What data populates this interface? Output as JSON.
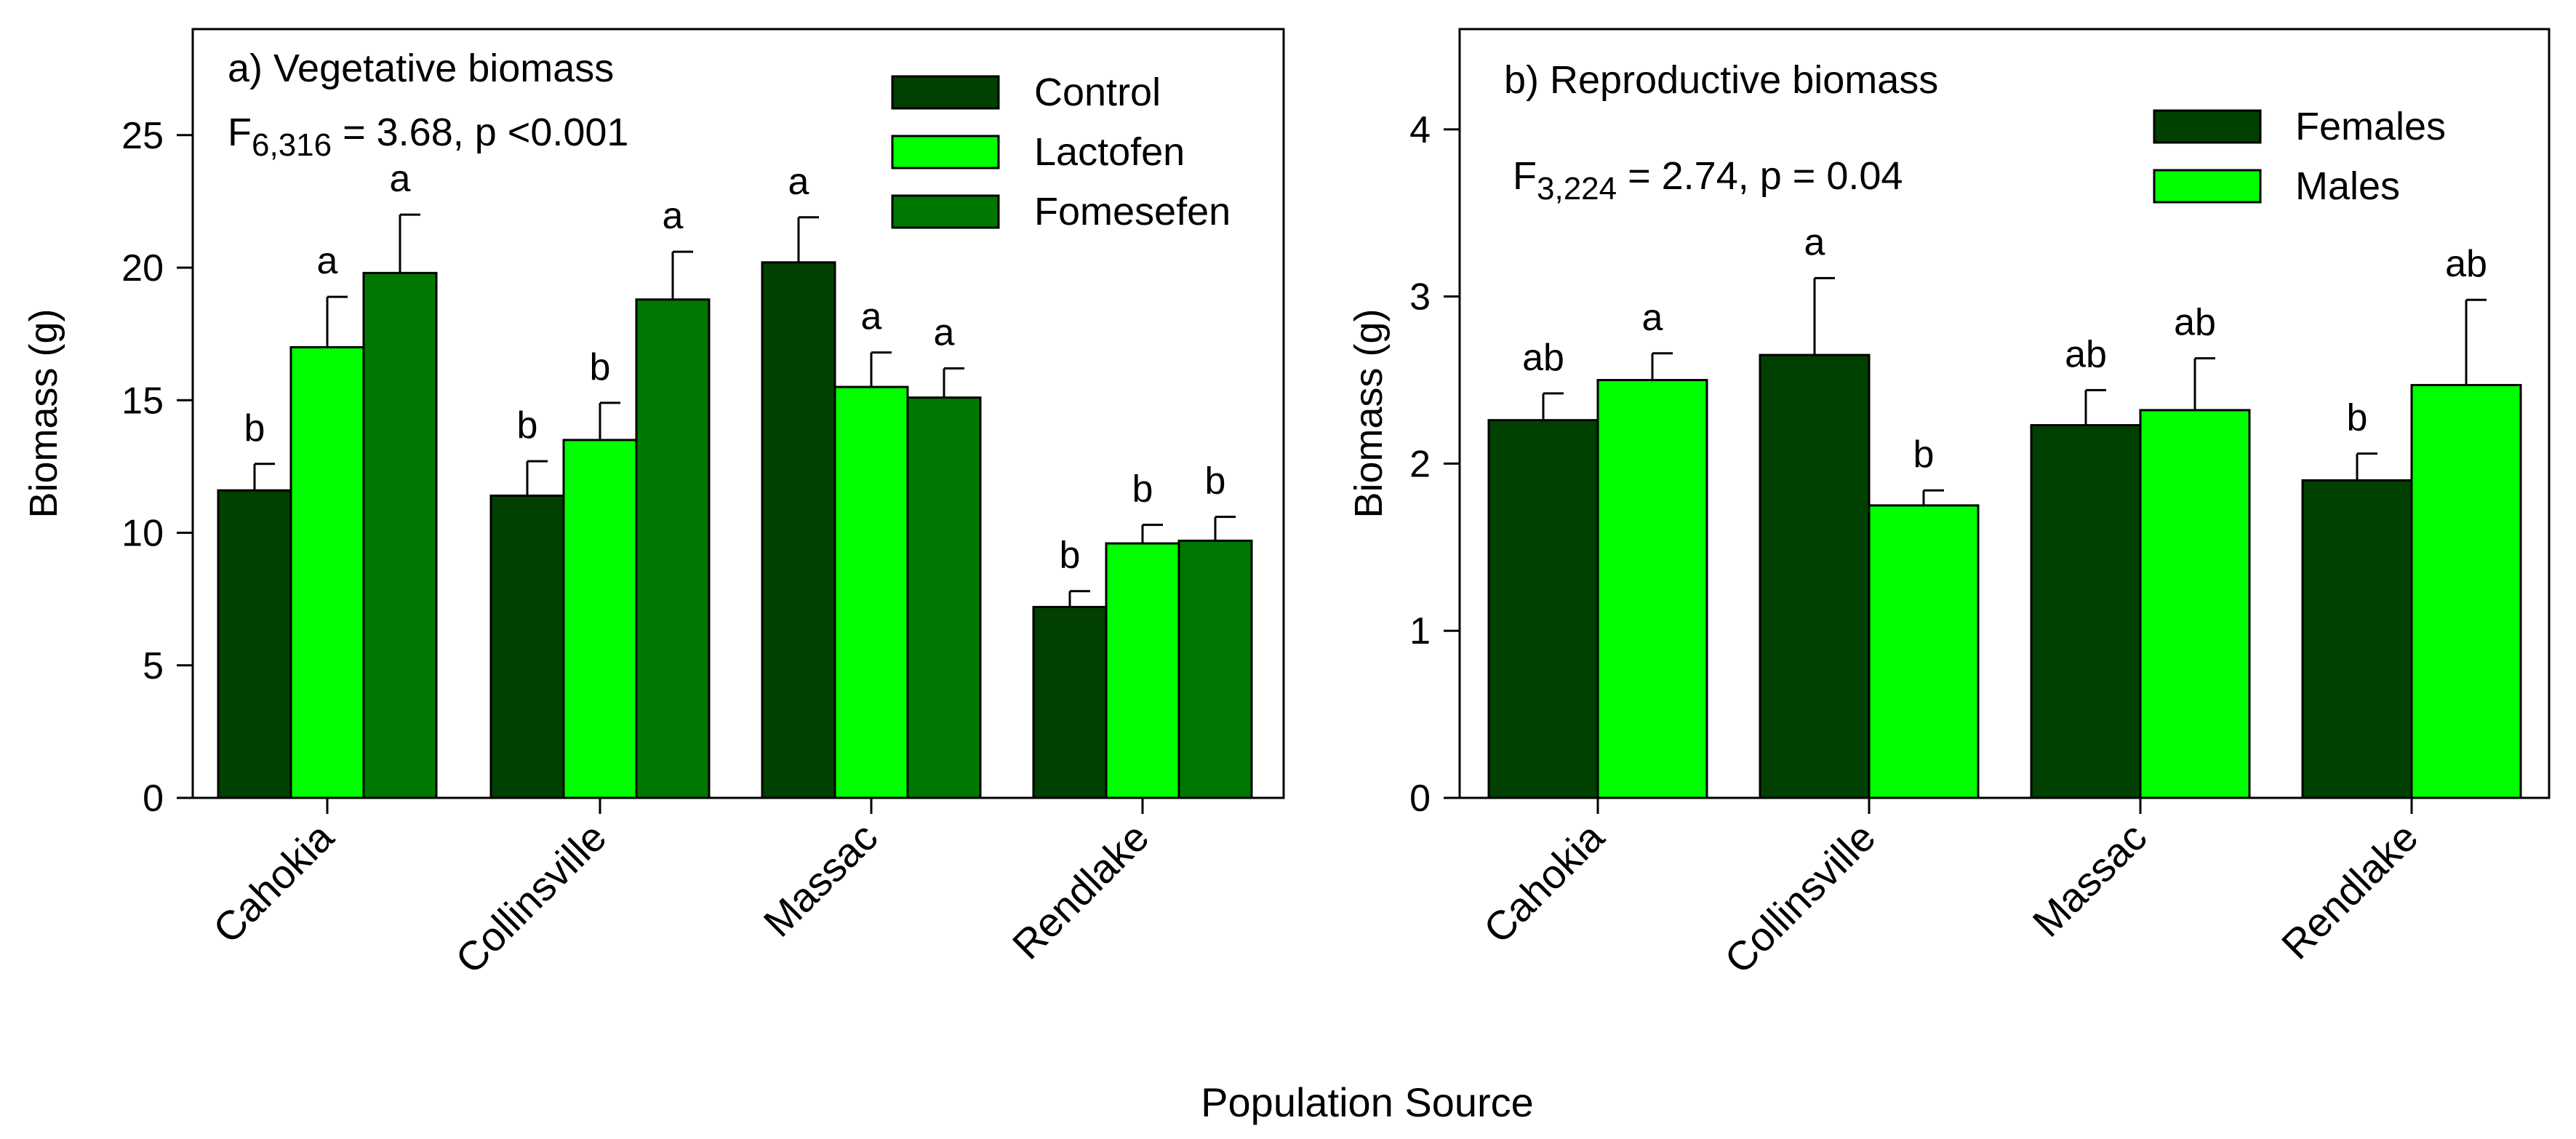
{
  "figure_xlabel": "Population Source",
  "colors": {
    "dark": "#004000",
    "light": "#00ff00",
    "medium": "#007800"
  },
  "chart_data": [
    {
      "type": "bar",
      "title": "a) Vegetative biomass",
      "stat_main": "F",
      "stat_sub": "6,316",
      "stat_rest": " = 3.68, p <0.001",
      "ylabel": "Biomass (g)",
      "xlabel": "Population Source",
      "ylim": [
        0,
        29
      ],
      "yticks": [
        "0",
        "5",
        "10",
        "15",
        "20",
        "25"
      ],
      "categories": [
        "Cahokia",
        "Collinsville",
        "Massac",
        "Rendlake"
      ],
      "legend_position": "top-right",
      "series": [
        {
          "name": "Control",
          "color": "#004000",
          "values": [
            11.6,
            11.4,
            20.2,
            7.2
          ],
          "errors": [
            1.0,
            1.3,
            1.7,
            0.6
          ],
          "letters": [
            "b",
            "b",
            "a",
            "b"
          ]
        },
        {
          "name": "Lactofen",
          "color": "#00ff00",
          "values": [
            17.0,
            13.5,
            15.5,
            9.6
          ],
          "errors": [
            1.9,
            1.4,
            1.3,
            0.7
          ],
          "letters": [
            "a",
            "b",
            "a",
            "b"
          ]
        },
        {
          "name": "Fomesefen",
          "color": "#007800",
          "values": [
            19.8,
            18.8,
            15.1,
            9.7
          ],
          "errors": [
            2.2,
            1.8,
            1.1,
            0.9
          ],
          "letters": [
            "a",
            "a",
            "a",
            "b"
          ]
        }
      ]
    },
    {
      "type": "bar",
      "title": "b) Reproductive biomass",
      "stat_main": "F",
      "stat_sub": "3,224",
      "stat_rest": " = 2.74, p = 0.04",
      "ylabel": "Biomass (g)",
      "xlabel": "Population Source",
      "ylim": [
        0,
        4.6
      ],
      "yticks": [
        "0",
        "1",
        "2",
        "3",
        "4"
      ],
      "categories": [
        "Cahokia",
        "Collinsville",
        "Massac",
        "Rendlake"
      ],
      "legend_position": "top-right",
      "series": [
        {
          "name": "Females",
          "color": "#004000",
          "values": [
            2.26,
            2.65,
            2.23,
            1.9
          ],
          "errors": [
            0.16,
            0.46,
            0.21,
            0.16
          ],
          "letters": [
            "ab",
            "a",
            "ab",
            "b"
          ]
        },
        {
          "name": "Males",
          "color": "#00ff00",
          "values": [
            2.5,
            1.75,
            2.32,
            2.47
          ],
          "errors": [
            0.16,
            0.09,
            0.31,
            0.51
          ],
          "letters": [
            "a",
            "b",
            "ab",
            "ab"
          ]
        }
      ]
    }
  ]
}
